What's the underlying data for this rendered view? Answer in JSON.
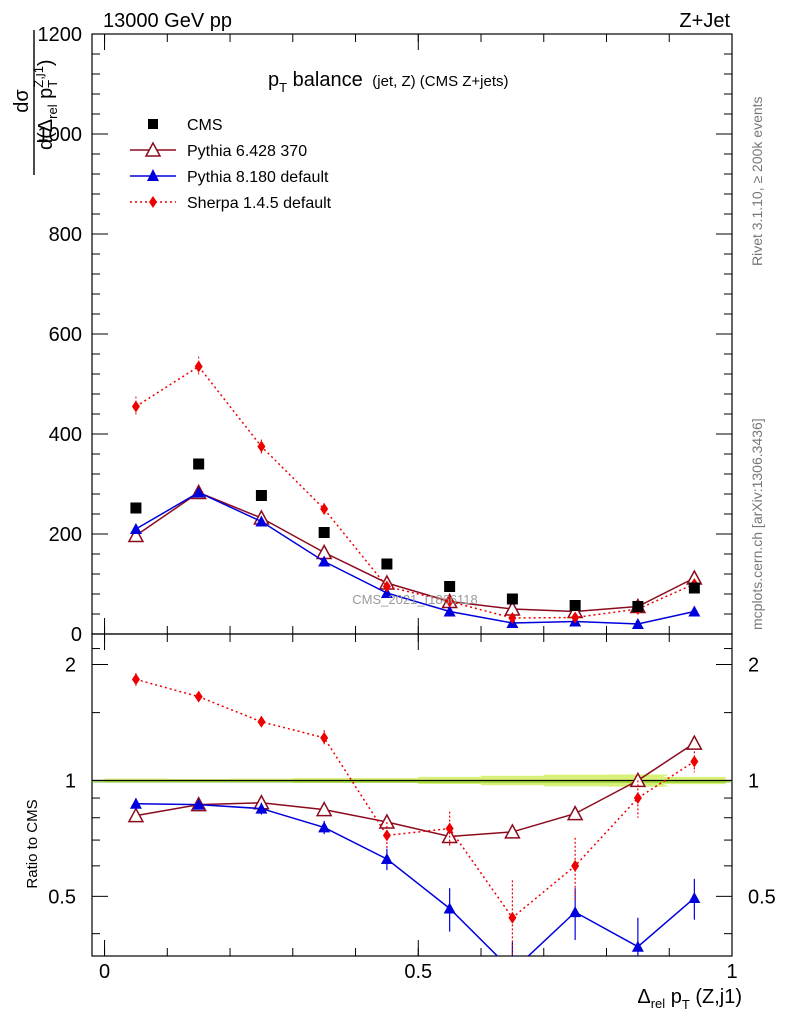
{
  "header": {
    "left": "13000 GeV pp",
    "right": "Z+Jet"
  },
  "title": {
    "main": "p",
    "main_sub": "T",
    "main_rest": " balance",
    "small": "(jet, Z) (CMS Z+jets)"
  },
  "side_labels": {
    "rivet": "Rivet 3.1.10, ≥ 200k events",
    "mcplots": "mcplots.cern.ch [arXiv:1306.3436]"
  },
  "watermark": "CMS_2021_I1866118",
  "axes": {
    "ylabel_top_num": "dσ",
    "ylabel_top_den": "d(Δ",
    "ylabel_top_den_sub": "rel",
    "ylabel_top_den_mid": " p",
    "ylabel_top_den_sub2": "T",
    "ylabel_top_den_sup": "Z,j1",
    "ylabel_top_den_end": ")",
    "ylabel_ratio": "Ratio to CMS",
    "xlabel_delta": "Δ",
    "xlabel_sub": "rel",
    "xlabel_mid": " p",
    "xlabel_sub2": "T",
    "xlabel_end": " (Z,j1)",
    "top_ticks": [
      "0",
      "200",
      "400",
      "600",
      "800",
      "1000",
      "1200"
    ],
    "ratio_ticks": [
      "0.5",
      "1",
      "2"
    ],
    "ratio_ticks_right": [
      "0.5",
      "1",
      "2"
    ],
    "x_ticks": [
      "0",
      "0.5",
      "1"
    ]
  },
  "legend": [
    {
      "label": "CMS",
      "color": "#000000",
      "marker": "square",
      "line": "none"
    },
    {
      "label": "Pythia 6.428 370",
      "color": "#8b0a1e",
      "marker": "open-triangle",
      "line": "solid"
    },
    {
      "label": "Pythia 8.180 default",
      "color": "#0000dd",
      "marker": "triangle",
      "line": "solid"
    },
    {
      "label": "Sherpa 1.4.5 default",
      "color": "#ee0000",
      "marker": "diamond",
      "line": "dotted"
    }
  ],
  "chart_data": {
    "type": "scatter",
    "x": [
      0.05,
      0.15,
      0.25,
      0.35,
      0.45,
      0.55,
      0.65,
      0.75,
      0.85,
      0.94
    ],
    "xlim": [
      -0.02,
      1.0
    ],
    "ylim": [
      0,
      1200
    ],
    "ratio_ylim": [
      0.35,
      2.4
    ],
    "series": [
      {
        "name": "CMS",
        "values": [
          252,
          340,
          277,
          203,
          140,
          95,
          70,
          57,
          55,
          92
        ],
        "errors": [
          3,
          3,
          3,
          3,
          2,
          2,
          2,
          2,
          2,
          2
        ]
      },
      {
        "name": "Pythia 6.428 370",
        "values": [
          197,
          283,
          232,
          163,
          102,
          65,
          50,
          45,
          55,
          112
        ],
        "errors": [
          4,
          5,
          5,
          4,
          3,
          3,
          2,
          2,
          2,
          3
        ]
      },
      {
        "name": "Pythia 8.180 default",
        "values": [
          210,
          283,
          225,
          145,
          82,
          45,
          22,
          25,
          20,
          45
        ],
        "errors": [
          4,
          5,
          5,
          4,
          4,
          4,
          3,
          3,
          3,
          3
        ]
      },
      {
        "name": "Sherpa 1.4.5 default",
        "values": [
          455,
          535,
          375,
          250,
          95,
          65,
          32,
          33,
          50,
          100
        ],
        "errors": [
          20,
          20,
          14,
          12,
          8,
          8,
          8,
          8,
          8,
          8
        ]
      }
    ],
    "ratios": [
      {
        "name": "Pythia 6.428 370",
        "values": [
          0.81,
          0.865,
          0.875,
          0.84,
          0.78,
          0.715,
          0.735,
          0.82,
          1.0,
          1.25
        ],
        "errors": [
          0.02,
          0.02,
          0.02,
          0.02,
          0.02,
          0.03,
          0.02,
          0.03,
          0.03,
          0.03
        ]
      },
      {
        "name": "Pythia 8.180 default",
        "values": [
          0.87,
          0.865,
          0.845,
          0.755,
          0.625,
          0.465,
          0.32,
          0.455,
          0.37,
          0.495
        ],
        "errors": [
          0.03,
          0.02,
          0.03,
          0.03,
          0.04,
          0.06,
          0.06,
          0.07,
          0.07,
          0.06
        ]
      },
      {
        "name": "Sherpa 1.4.5 default",
        "values": [
          1.83,
          1.65,
          1.42,
          1.29,
          0.72,
          0.75,
          0.44,
          0.6,
          0.9,
          1.12
        ],
        "errors": [
          0.07,
          0.05,
          0.05,
          0.06,
          0.06,
          0.08,
          0.11,
          0.11,
          0.1,
          0.07
        ]
      }
    ]
  }
}
